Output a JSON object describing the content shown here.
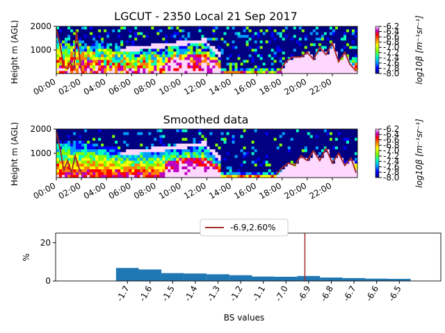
{
  "chart_data": [
    {
      "type": "heatmap",
      "title": "LGCUT - 2350 Local 21 Sep 2017",
      "ylabel": "Height m (AGL)",
      "colorbar_label": "log10β [m⁻¹sr⁻¹]",
      "ylim": [
        0,
        2000
      ],
      "y_ticks": [
        "1000",
        "2000"
      ],
      "x_ticks": [
        "00:00",
        "02:00",
        "04:00",
        "06:00",
        "08:00",
        "10:00",
        "12:00",
        "14:00",
        "16:00",
        "18:00",
        "20:00",
        "22:00"
      ],
      "colorbar_ticks": [
        "-6.2",
        "-6.4",
        "-6.6",
        "-6.8",
        "-7.0",
        "-7.2",
        "-7.4",
        "-7.6",
        "-7.8",
        "-8.0"
      ],
      "colorbar_range": [
        -8.0,
        -6.2
      ],
      "mixing_layer_line": {
        "color": "#a52a2a",
        "hours": [
          0,
          0.3,
          0.6,
          0.9,
          1.1,
          1.4,
          1.6,
          2.0,
          17.8,
          18.3,
          18.8,
          19.5,
          20.0,
          20.5,
          21.0,
          21.5,
          22.0,
          22.5,
          23.0,
          23.4,
          23.9
        ],
        "heights": [
          1900,
          1200,
          300,
          200,
          500,
          150,
          1800,
          100,
          100,
          500,
          700,
          700,
          900,
          600,
          1100,
          800,
          1300,
          500,
          900,
          400,
          100
        ]
      }
    },
    {
      "type": "heatmap",
      "title": "Smoothed data",
      "ylabel": "Height m (AGL)",
      "colorbar_label": "log10β [m⁻¹sr⁻¹]",
      "ylim": [
        0,
        2000
      ],
      "y_ticks": [
        "1000",
        "2000"
      ],
      "x_ticks": [
        "00:00",
        "02:00",
        "04:00",
        "06:00",
        "08:00",
        "10:00",
        "12:00",
        "14:00",
        "16:00",
        "18:00",
        "20:00",
        "22:00"
      ],
      "colorbar_ticks": [
        "-6.2",
        "-6.4",
        "-6.6",
        "-6.8",
        "-7.0",
        "-7.2",
        "-7.4",
        "-7.6",
        "-7.8",
        "-8.0"
      ],
      "colorbar_range": [
        -8.0,
        -6.2
      ],
      "mixing_layer_line": {
        "color": "#a52a2a",
        "hours": [
          0,
          0.3,
          0.6,
          0.9,
          1.2,
          1.5,
          1.8,
          2.1,
          17.5,
          18.0,
          18.5,
          19.0,
          19.5,
          20.0,
          20.5,
          21.0,
          21.5,
          22.0,
          22.5,
          23.0,
          23.5,
          23.9
        ],
        "heights": [
          1900,
          1200,
          300,
          700,
          200,
          900,
          400,
          100,
          100,
          400,
          600,
          500,
          900,
          700,
          1100,
          700,
          1200,
          600,
          1000,
          500,
          800,
          200
        ]
      }
    },
    {
      "type": "bar",
      "xlabel": "BS values",
      "ylabel": "%",
      "ylim": [
        0,
        25
      ],
      "y_ticks": [
        "0",
        "20"
      ],
      "categories": [
        "-1.7",
        "-1.6",
        "-1.5",
        "-1.4",
        "-1.3",
        "-1.2",
        "-1.1",
        "-7.0",
        "-6.9",
        "-6.8",
        "-6.7",
        "-6.6",
        "-6.5"
      ],
      "bin_edges": [
        -7.7,
        -7.55,
        -7.4,
        -7.25,
        -7.1,
        -6.95,
        -6.8,
        -6.65,
        -6.5,
        -6.35,
        -6.2,
        -6.05,
        -5.9,
        -5.75
      ],
      "values": [
        6.8,
        6.0,
        4.1,
        3.9,
        3.5,
        3.0,
        2.3,
        2.2,
        2.6,
        1.8,
        1.5,
        1.2,
        1.1
      ],
      "bar_color": "#1f77b4",
      "vline": {
        "x": -6.45,
        "color": "#a52a2a"
      },
      "legend": {
        "label": "-6.9,2.60%",
        "position": "top"
      }
    }
  ]
}
